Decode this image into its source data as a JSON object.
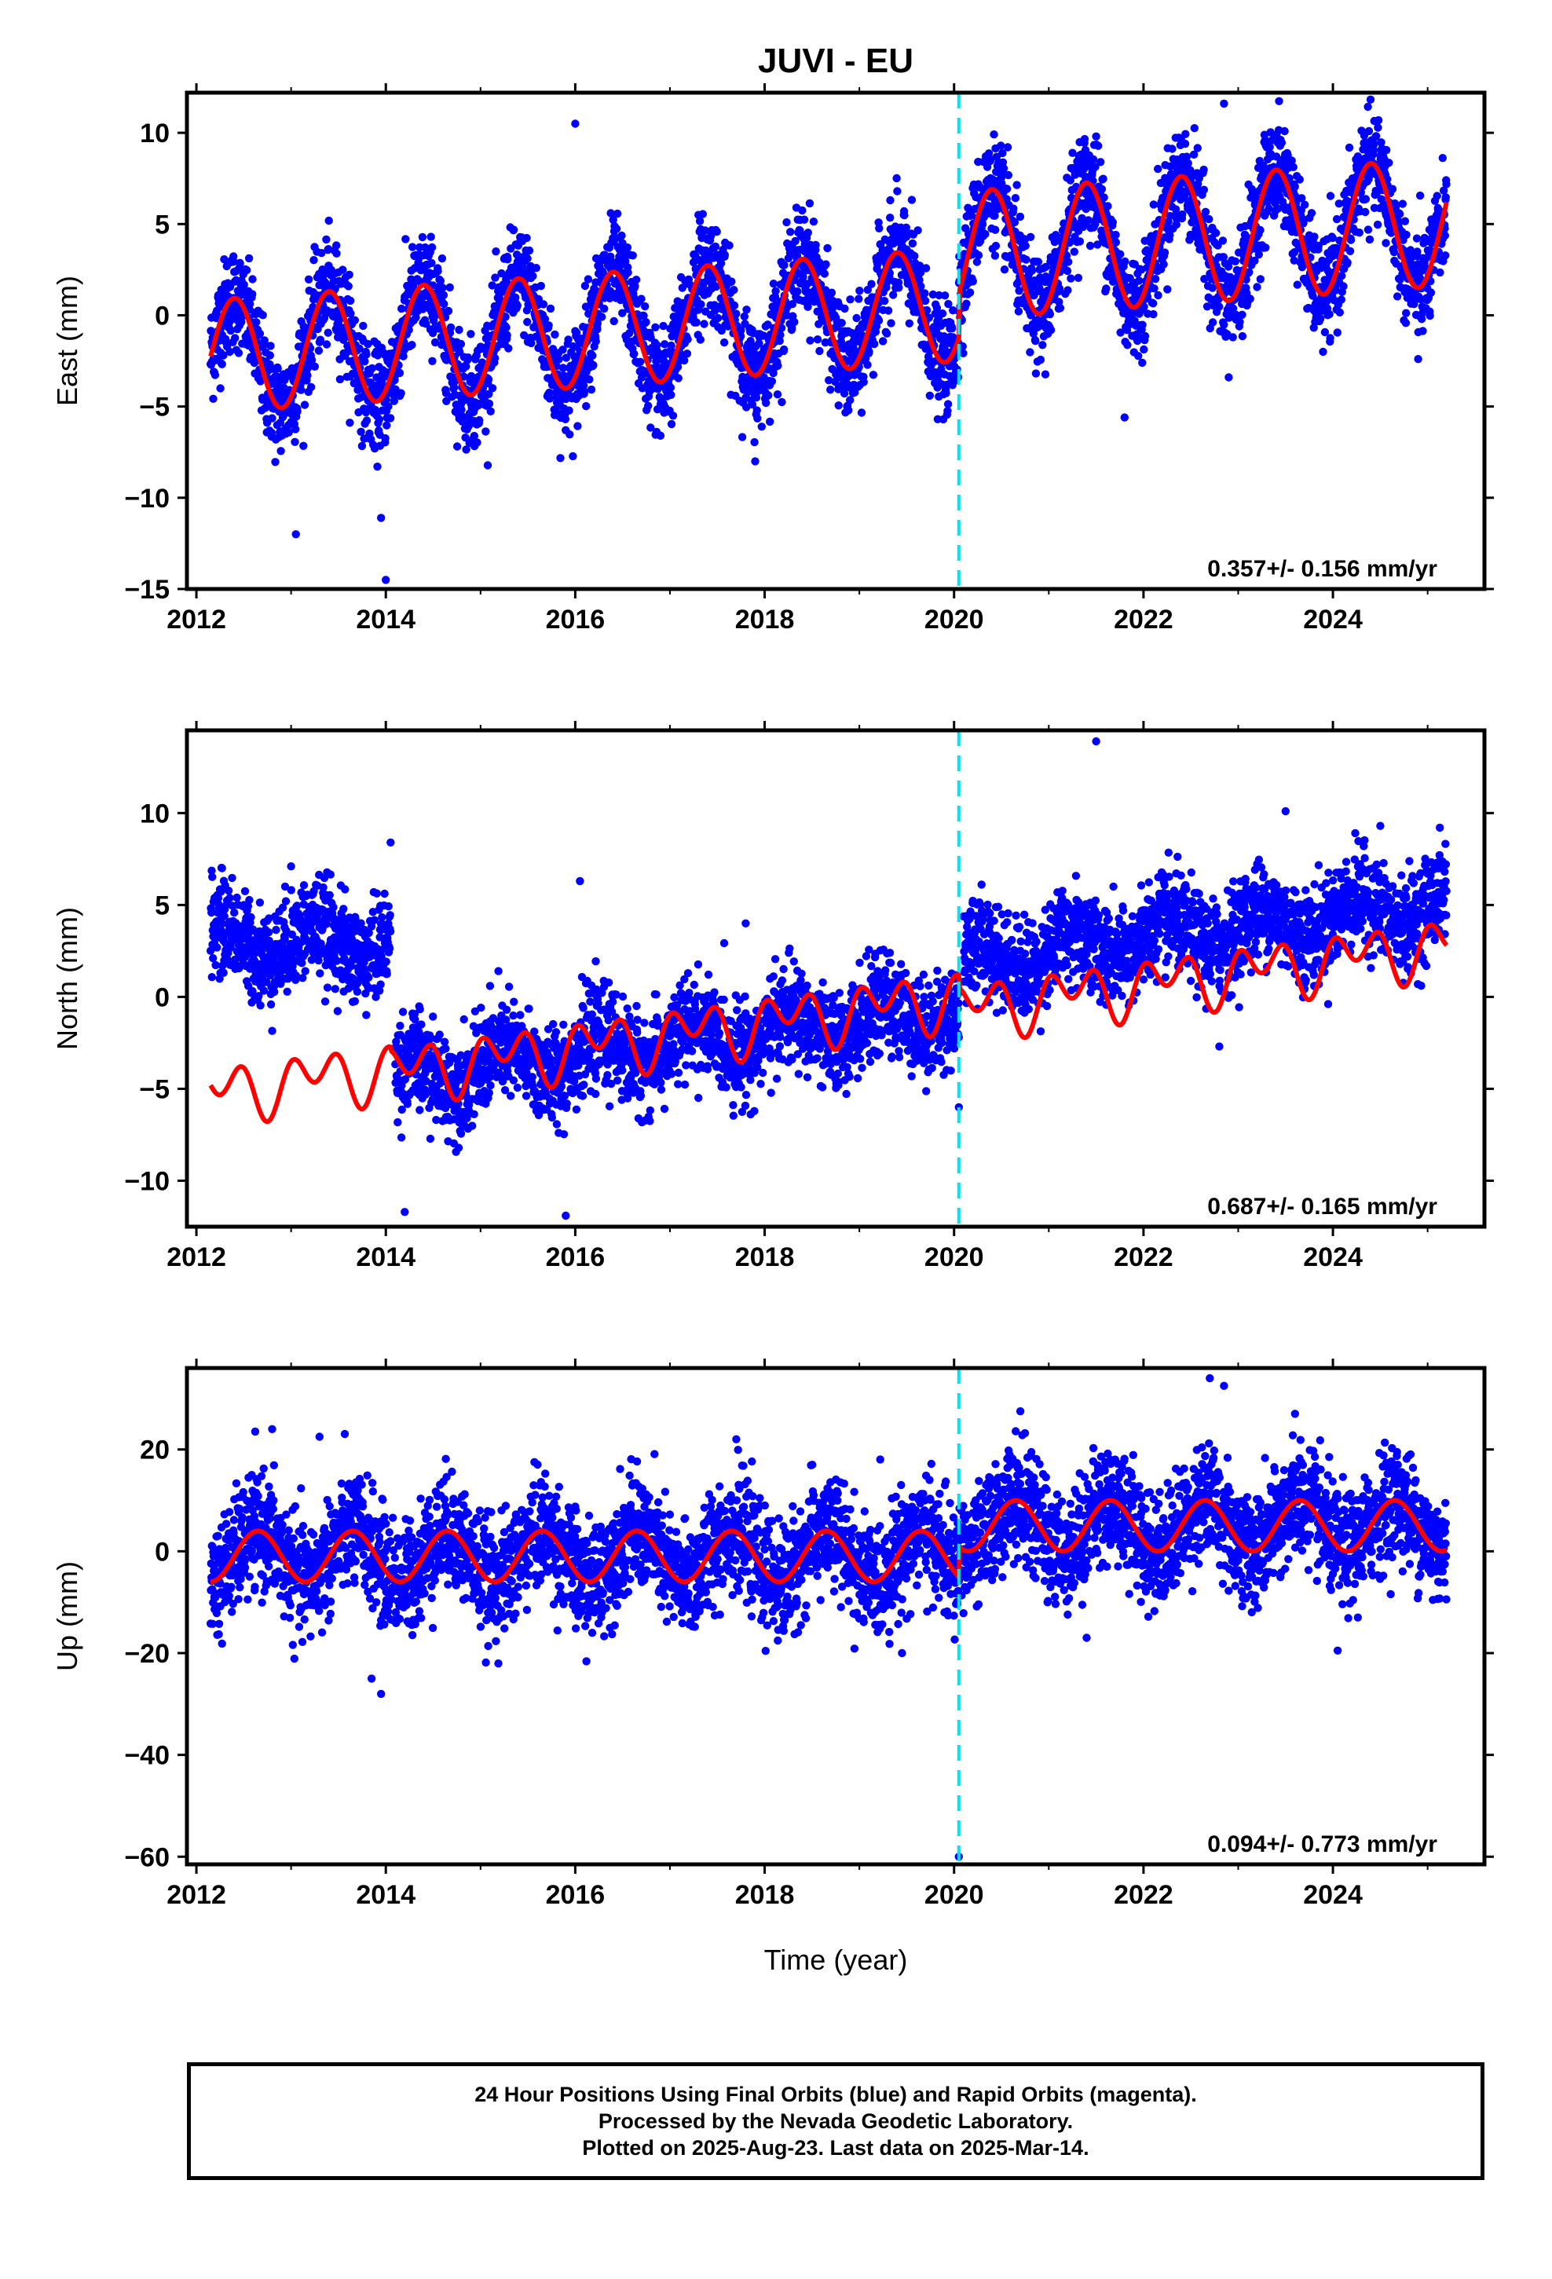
{
  "title": "JUVI - EU",
  "x_axis_title": "Time (year)",
  "footer": {
    "line1": "24 Hour Positions Using Final Orbits (blue) and Rapid Orbits (magenta).",
    "line2": "Processed by the Nevada Geodetic Laboratory.",
    "line3": "Plotted on 2025-Aug-23. Last data on 2025-Mar-14."
  },
  "colors": {
    "points": "#0000ff",
    "fit": "#ff0000",
    "offset_line": "#00e5ee",
    "frame": "#000000"
  },
  "chart_data": [
    {
      "type": "scatter",
      "ylabel": "East (mm)",
      "xlim": [
        2011.9,
        2025.6
      ],
      "ylim": [
        -15,
        12.2
      ],
      "xticks": [
        2012,
        2014,
        2016,
        2018,
        2020,
        2022,
        2024
      ],
      "yticks": [
        -15,
        -10,
        -5,
        0,
        5,
        10
      ],
      "rate_text": "0.357+/- 0.156 mm/yr",
      "offset_epoch": 2020.05,
      "series": [
        {
          "role": "daily-positions",
          "pattern": {
            "start": 2012.15,
            "end": 2025.2,
            "trend": [
              -2.3,
              0.357
            ],
            "annual_amplitude": 3.1,
            "noise": 1.4
          },
          "outliers": [
            [
              2014.0,
              -14.5
            ],
            [
              2016.0,
              10.5
            ],
            [
              2022.85,
              11.6
            ],
            [
              2021.5,
              9.8
            ],
            [
              2017.3,
              5.5
            ],
            [
              2021.8,
              -5.6
            ],
            [
              2013.05,
              -12.0
            ],
            [
              2013.95,
              -11.1
            ],
            [
              2024.9,
              -2.4
            ],
            [
              2019.4,
              6.8
            ],
            [
              2022.9,
              -3.4
            ],
            [
              2017.9,
              -8.0
            ],
            [
              2016.9,
              -6.6
            ]
          ]
        },
        {
          "role": "fit-model",
          "intercept": -2.3,
          "rate": 0.357,
          "annual_amplitude": 3.1,
          "phase_peak": 0.4,
          "offset_at_jump": 2.7,
          "amplitude_after_jump": 0.4
        }
      ]
    },
    {
      "type": "scatter",
      "ylabel": "North (mm)",
      "xlim": [
        2011.9,
        2025.6
      ],
      "ylim": [
        -12.5,
        14.5
      ],
      "xticks": [
        2012,
        2014,
        2016,
        2018,
        2020,
        2022,
        2024
      ],
      "yticks": [
        -10,
        -5,
        0,
        5,
        10
      ],
      "rate_text": "0.687+/- 0.165 mm/yr",
      "offset_epoch": 2020.05,
      "series": [
        {
          "role": "daily-positions",
          "pattern": {
            "segments": [
              [
                2012.15,
                2014.05,
                3.0
              ],
              [
                2014.1,
                2020.05,
                -4.4
              ],
              [
                2020.1,
                2025.2,
                1.9
              ]
            ],
            "trend": 0.687,
            "noise": 1.3
          },
          "outliers": [
            [
              2021.5,
              13.9
            ],
            [
              2016.05,
              6.3
            ],
            [
              2023.5,
              10.1
            ],
            [
              2014.05,
              8.4
            ],
            [
              2013.0,
              7.1
            ],
            [
              2014.2,
              -11.7
            ],
            [
              2015.9,
              -11.9
            ],
            [
              2017.8,
              4.0
            ],
            [
              2020.05,
              -6.0
            ],
            [
              2022.8,
              -2.7
            ],
            [
              2015.1,
              0.6
            ],
            [
              2024.5,
              9.3
            ]
          ]
        },
        {
          "role": "fit-model",
          "segments": [
            [
              2012.15,
              2014.05,
              -5.2
            ],
            [
              2014.05,
              2020.05,
              -4.1
            ],
            [
              2020.05,
              2025.2,
              -0.7
            ]
          ],
          "rate": 0.687,
          "annual_amplitude": 0.9,
          "semiannual_amplitude": 1.1
        }
      ]
    },
    {
      "type": "scatter",
      "ylabel": "Up (mm)",
      "xlim": [
        2011.9,
        2025.6
      ],
      "ylim": [
        -61.5,
        36
      ],
      "xticks": [
        2012,
        2014,
        2016,
        2018,
        2020,
        2022,
        2024
      ],
      "yticks": [
        -60,
        -40,
        -20,
        0,
        20
      ],
      "rate_text": "0.094+/- 0.773 mm/yr",
      "offset_epoch": 2020.05,
      "series": [
        {
          "role": "daily-positions",
          "pattern": {
            "start": 2012.15,
            "end": 2025.2,
            "before_mean": -1.0,
            "after_mean": 5.0,
            "annual_amplitude": 5.0,
            "noise": 5.5
          },
          "outliers": [
            [
              2020.05,
              -60.0
            ],
            [
              2022.7,
              34.0
            ],
            [
              2022.85,
              32.5
            ],
            [
              2013.95,
              -28.0
            ],
            [
              2013.85,
              -25.0
            ],
            [
              2020.7,
              27.5
            ],
            [
              2023.6,
              27.0
            ],
            [
              2012.8,
              24.0
            ],
            [
              2017.7,
              22.0
            ],
            [
              2013.3,
              22.5
            ],
            [
              2019.45,
              -20.0
            ],
            [
              2024.05,
              -19.5
            ],
            [
              2021.4,
              -17.0
            ]
          ]
        },
        {
          "role": "fit-model",
          "before_mean": -1.0,
          "after_mean": 5.0,
          "annual_amplitude": 5.0,
          "phase_peak": 0.65
        }
      ]
    }
  ]
}
